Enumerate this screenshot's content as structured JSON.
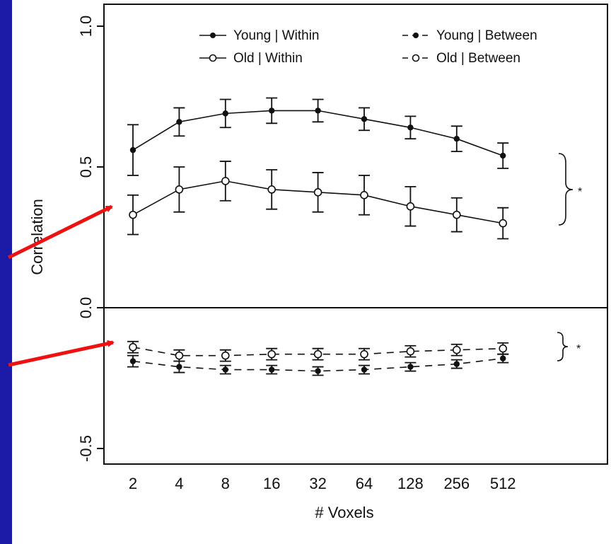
{
  "colors": {
    "background": "#1a1aa6",
    "panel": "#ffffff",
    "ink": "#111111",
    "arrow": "#ee1111"
  },
  "chart_data": {
    "type": "line",
    "title": "",
    "xlabel": "# Voxels",
    "ylabel": "Correlation",
    "categories": [
      "2",
      "4",
      "8",
      "16",
      "32",
      "64",
      "128",
      "256",
      "512"
    ],
    "ylim": [
      -0.55,
      1.0
    ],
    "yticks": [
      "-0.5",
      "0.0",
      "0.5",
      "1.0"
    ],
    "ytick_values": [
      -0.5,
      0.0,
      0.5,
      1.0
    ],
    "reference_line_y": 0.0,
    "grid": false,
    "legend_position": "top-right",
    "series": [
      {
        "name": "Young | Within",
        "marker": "filled",
        "linestyle": "solid",
        "values": [
          0.56,
          0.66,
          0.69,
          0.7,
          0.7,
          0.67,
          0.64,
          0.6,
          0.54
        ],
        "errors": [
          0.09,
          0.05,
          0.05,
          0.045,
          0.04,
          0.04,
          0.04,
          0.045,
          0.045
        ]
      },
      {
        "name": "Old | Within",
        "marker": "open",
        "linestyle": "solid",
        "values": [
          0.33,
          0.42,
          0.45,
          0.42,
          0.41,
          0.4,
          0.36,
          0.33,
          0.3
        ],
        "errors": [
          0.07,
          0.08,
          0.07,
          0.07,
          0.07,
          0.07,
          0.07,
          0.06,
          0.055
        ]
      },
      {
        "name": "Young | Between",
        "marker": "filled",
        "linestyle": "dashed",
        "values": [
          -0.19,
          -0.21,
          -0.22,
          -0.22,
          -0.225,
          -0.22,
          -0.21,
          -0.2,
          -0.18
        ],
        "errors": [
          0.02,
          0.02,
          0.015,
          0.015,
          0.015,
          0.015,
          0.015,
          0.015,
          0.015
        ]
      },
      {
        "name": "Old | Between",
        "marker": "open",
        "linestyle": "dashed",
        "values": [
          -0.14,
          -0.17,
          -0.17,
          -0.165,
          -0.165,
          -0.165,
          -0.155,
          -0.15,
          -0.145
        ],
        "errors": [
          0.02,
          0.02,
          0.02,
          0.02,
          0.02,
          0.02,
          0.02,
          0.02,
          0.02
        ]
      }
    ],
    "annotations": [
      "*",
      "*"
    ]
  }
}
